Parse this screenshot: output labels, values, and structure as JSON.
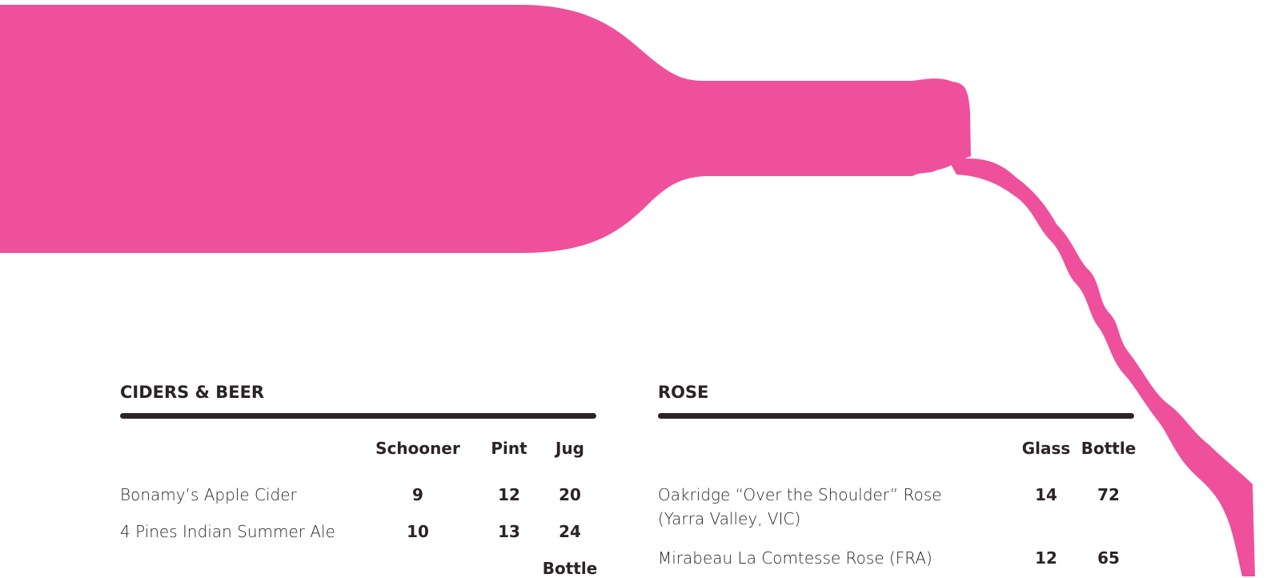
{
  "sections": [
    {
      "title": "CIDERS & BEER",
      "columns": [
        "Schooner",
        "Pint",
        "Jug"
      ],
      "items": [
        {
          "name": "Bonamy’s Apple Cider",
          "prices": [
            9,
            12,
            20
          ]
        },
        {
          "name": "4 Pines Indian Summer Ale",
          "prices": [
            10,
            13,
            24
          ]
        }
      ],
      "next_header": "Bottle"
    },
    {
      "title": "ROSE",
      "columns": [
        "Glass",
        "Bottle"
      ],
      "items": [
        {
          "name": "Oakridge “Over the Shoulder” Rose",
          "note": "(Yarra Valley, VIC)",
          "prices": [
            14,
            72
          ]
        },
        {
          "name": "Mirabeau La Comtesse Rose (FRA)",
          "prices": [
            12,
            65
          ]
        }
      ]
    }
  ]
}
